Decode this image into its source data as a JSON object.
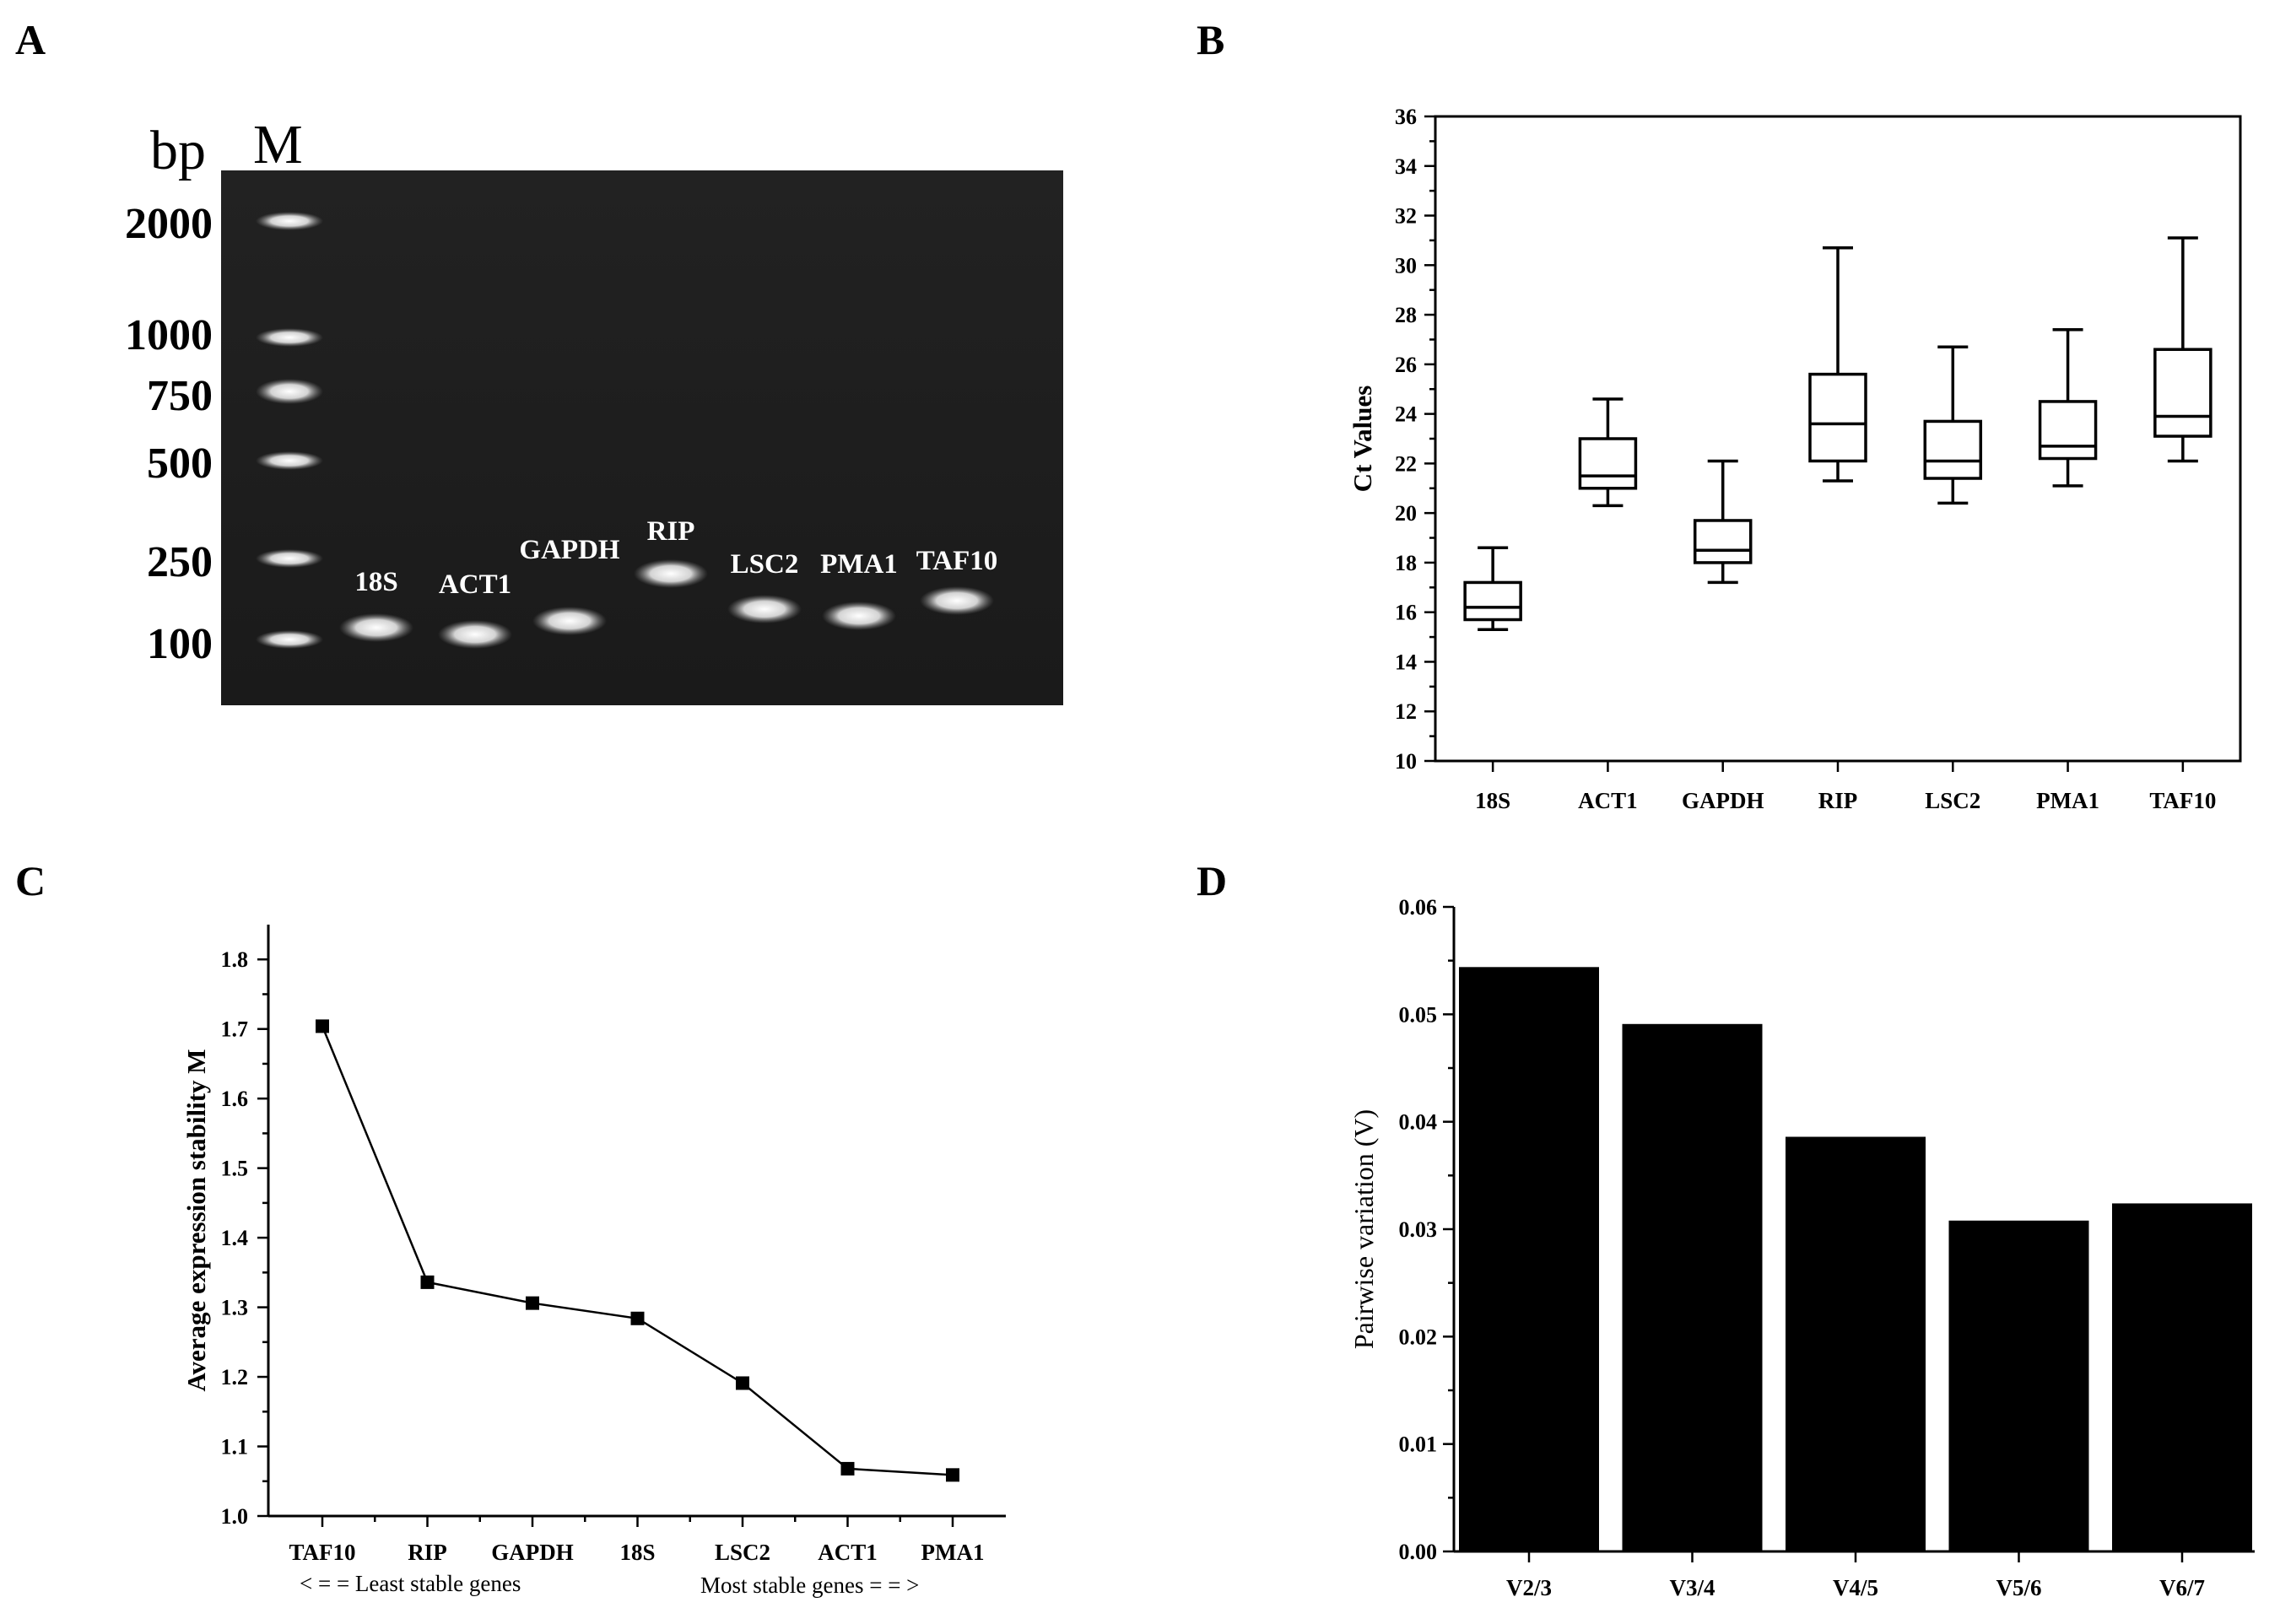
{
  "panels": {
    "a": "A",
    "b": "B",
    "c": "C",
    "d": "D"
  },
  "chart_data": [
    {
      "panel": "A",
      "type": "other",
      "description_free": true,
      "marker_header": "bp",
      "marker_lane_label": "M",
      "marker_sizes": [
        "2000",
        "1000",
        "750",
        "500",
        "250",
        "100"
      ],
      "lanes": [
        "18S",
        "ACT1",
        "GAPDH",
        "RIP",
        "LSC2",
        "PMA1",
        "TAF10"
      ]
    },
    {
      "panel": "B",
      "type": "box",
      "categories": [
        "18S",
        "ACT1",
        "GAPDH",
        "RIP",
        "LSC2",
        "PMA1",
        "TAF10"
      ],
      "boxes": [
        {
          "min": 15.3,
          "q1": 15.7,
          "median": 16.2,
          "q3": 17.2,
          "max": 18.6
        },
        {
          "min": 20.3,
          "q1": 21.0,
          "median": 21.5,
          "q3": 23.0,
          "max": 24.6
        },
        {
          "min": 17.2,
          "q1": 18.0,
          "median": 18.5,
          "q3": 19.7,
          "max": 22.1
        },
        {
          "min": 21.3,
          "q1": 22.1,
          "median": 23.6,
          "q3": 25.6,
          "max": 30.7
        },
        {
          "min": 20.4,
          "q1": 21.4,
          "median": 22.1,
          "q3": 23.7,
          "max": 26.7
        },
        {
          "min": 21.1,
          "q1": 22.2,
          "median": 22.7,
          "q3": 24.5,
          "max": 27.4
        },
        {
          "min": 22.1,
          "q1": 23.1,
          "median": 23.9,
          "q3": 26.6,
          "max": 31.1
        }
      ],
      "ylabel": "Ct Values",
      "ylim": [
        10,
        36
      ],
      "yticks": [
        "10",
        "12",
        "14",
        "16",
        "18",
        "20",
        "22",
        "24",
        "26",
        "28",
        "30",
        "32",
        "34",
        "36"
      ]
    },
    {
      "panel": "C",
      "type": "line",
      "categories": [
        "TAF10",
        "RIP",
        "GAPDH",
        "18S",
        "LSC2",
        "ACT1",
        "PMA1"
      ],
      "values": [
        1.704,
        1.336,
        1.306,
        1.284,
        1.191,
        1.068,
        1.059
      ],
      "ylabel": "Average expression stability M",
      "ylim": [
        1.0,
        1.85
      ],
      "yticks": [
        "1.0",
        "1.1",
        "1.2",
        "1.3",
        "1.4",
        "1.5",
        "1.6",
        "1.7",
        "1.8"
      ],
      "note_left": "< = = Least stable genes",
      "note_right": "Most stable genes = = >"
    },
    {
      "panel": "D",
      "type": "bar",
      "categories": [
        "V2/3",
        "V3/4",
        "V4/5",
        "V5/6",
        "V6/7"
      ],
      "values": [
        0.0544,
        0.0491,
        0.0386,
        0.0308,
        0.0324
      ],
      "ylabel": "Pairwise variation (V)",
      "ylim": [
        0,
        0.06
      ],
      "yticks": [
        "0.00",
        "0.01",
        "0.02",
        "0.03",
        "0.04",
        "0.05",
        "0.06"
      ]
    }
  ]
}
